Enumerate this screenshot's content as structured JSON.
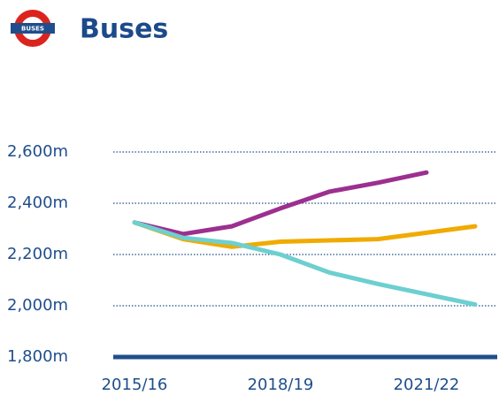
{
  "logo_text": "BUSES",
  "chart_data": {
    "type": "line",
    "title": "Buses",
    "categories": [
      "2015/16",
      null,
      null,
      "2018/19",
      null,
      null,
      "2021/22",
      null
    ],
    "series": [
      {
        "color": "#9c2f8f",
        "values": [
          2325,
          2280,
          2310,
          2380,
          2445,
          2480,
          2520,
          null
        ]
      },
      {
        "color": "#f0ab00",
        "values": [
          2325,
          2260,
          2230,
          2250,
          2255,
          2260,
          2285,
          2310
        ]
      },
      {
        "color": "#6dcfcf",
        "values": [
          2325,
          2265,
          2245,
          2200,
          2130,
          2085,
          2045,
          2005
        ]
      }
    ],
    "ylim": [
      1800,
      2600
    ],
    "yticks": [
      {
        "value": 1800,
        "label": "1,800m"
      },
      {
        "value": 2000,
        "label": "2,000m"
      },
      {
        "value": 2200,
        "label": "2,200m"
      },
      {
        "value": 2400,
        "label": "2,400m"
      },
      {
        "value": 2600,
        "label": "2,600m"
      }
    ],
    "grid": true
  }
}
